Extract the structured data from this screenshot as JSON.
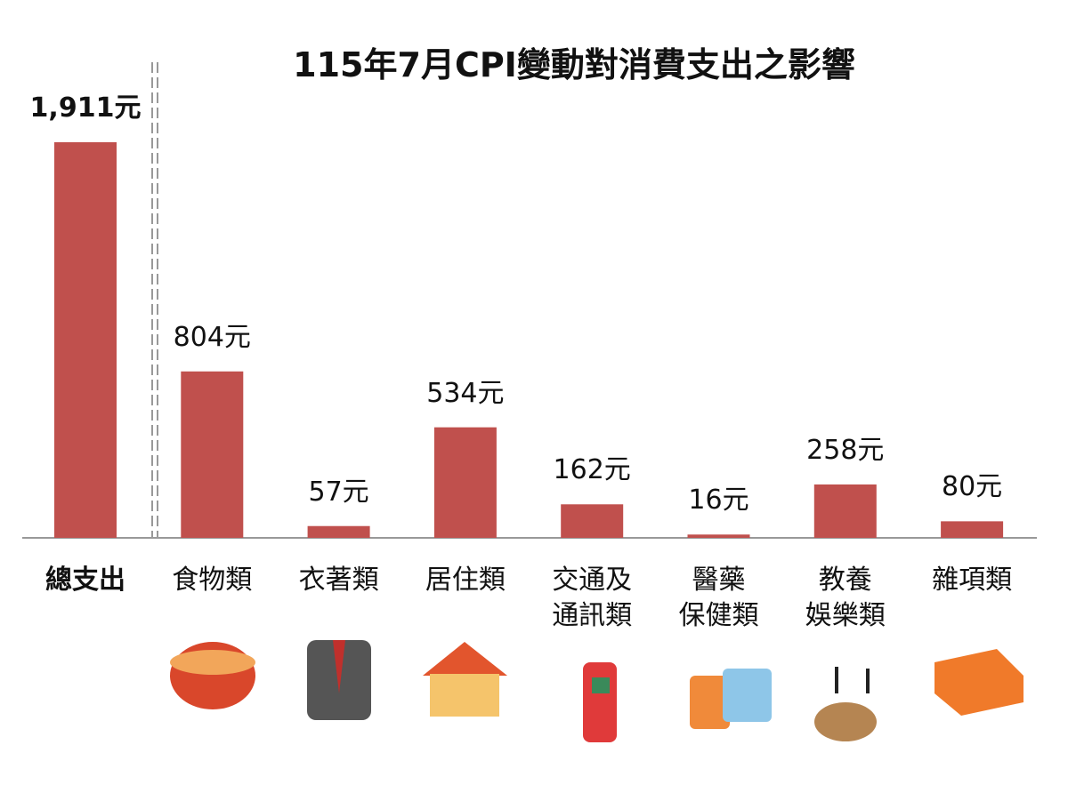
{
  "chart_data": {
    "type": "bar",
    "title": "115年7月CPI變動對消費支出之影響",
    "categories": [
      "總支出",
      "食物類",
      "衣著類",
      "居住類",
      "交通及\n通訊類",
      "醫藥\n保健類",
      "教養\n娛樂類",
      "雜項類"
    ],
    "values": [
      1911,
      804,
      57,
      534,
      162,
      16,
      258,
      80
    ],
    "value_labels": [
      "1,911元",
      "804元",
      "57元",
      "534元",
      "162元",
      "16元",
      "258元",
      "80元"
    ],
    "color": "#c0504d"
  }
}
